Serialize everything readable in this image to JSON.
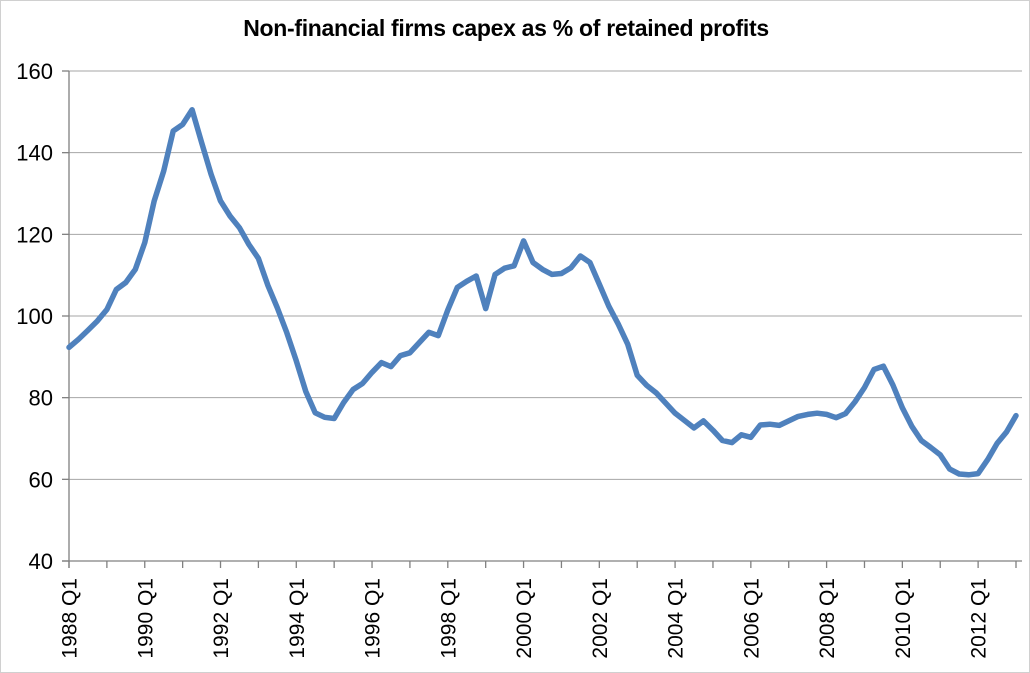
{
  "chart_data": {
    "type": "line",
    "title": "Non-financial firms capex as % of retained profits",
    "series_name": "Non-financial firms capex as % of retained profits",
    "frequency": "quarterly",
    "x_start": "1988 Q1",
    "x_end": "2013 Q1",
    "x_tick_labels": [
      "1988 Q1",
      "1990 Q1",
      "1992 Q1",
      "1994 Q1",
      "1996 Q1",
      "1998 Q1",
      "2000 Q1",
      "2002 Q1",
      "2004 Q1",
      "2006 Q1",
      "2008 Q1",
      "2010 Q1",
      "2012 Q1"
    ],
    "y_ticks": [
      160,
      140,
      120,
      100,
      80,
      60,
      40
    ],
    "ylim": [
      40,
      160
    ],
    "grid": "horizontal",
    "legend": "none",
    "line_color": "#4F81BD",
    "gridline_color": "#A6A6A6",
    "axis_color": "#808080",
    "values": [
      92.3,
      94.3,
      96.5,
      98.8,
      101.6,
      106.5,
      108.2,
      111.4,
      118.0,
      128.2,
      135.5,
      145.3,
      146.9,
      150.5,
      142.5,
      134.7,
      128.2,
      124.5,
      121.6,
      117.5,
      114.1,
      107.5,
      102.0,
      95.9,
      89.0,
      81.5,
      76.3,
      75.2,
      74.9,
      78.8,
      82.0,
      83.5,
      86.2,
      88.6,
      87.6,
      90.3,
      91.0,
      93.5,
      96.0,
      95.2,
      101.5,
      107.0,
      108.5,
      109.8,
      101.8,
      110.2,
      111.7,
      112.3,
      118.4,
      113.1,
      111.4,
      110.2,
      110.4,
      111.8,
      114.7,
      113.1,
      107.8,
      102.4,
      98.0,
      93.1,
      85.5,
      83.0,
      81.2,
      78.7,
      76.2,
      74.4,
      72.6,
      74.3,
      72.0,
      69.5,
      69.0,
      70.9,
      70.3,
      73.3,
      73.5,
      73.2,
      74.3,
      75.4,
      75.9,
      76.2,
      75.9,
      75.1,
      76.1,
      79.0,
      82.5,
      86.9,
      87.7,
      83.1,
      77.5,
      73.0,
      69.5,
      67.8,
      66.0,
      62.5,
      61.3,
      61.1,
      61.4,
      64.8,
      68.8,
      71.6,
      75.6
    ]
  }
}
